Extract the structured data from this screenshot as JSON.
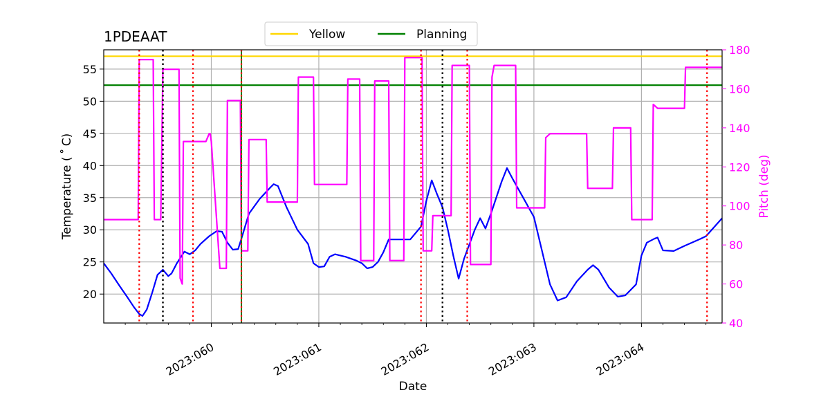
{
  "chart_data": {
    "type": "line",
    "title": "1PDEAAT",
    "xlabel": "Date",
    "ylabel_left": "Temperature ($^\\circ$C)",
    "ylabel_left_display": "Temperature ( ˚ C)",
    "ylabel_right": "Pitch (deg)",
    "x_unit": "day of 2023",
    "xlim": [
      2023.059,
      2023.06475
    ],
    "ylim_left": [
      15.5,
      58
    ],
    "ylim_right": [
      40,
      180
    ],
    "x_ticks": [
      {
        "value": 2023.06,
        "label": "2023:060"
      },
      {
        "value": 2023.061,
        "label": "2023:061"
      },
      {
        "value": 2023.062,
        "label": "2023:062"
      },
      {
        "value": 2023.063,
        "label": "2023:063"
      },
      {
        "value": 2023.064,
        "label": "2023:064"
      }
    ],
    "y_ticks_left": [
      20,
      25,
      30,
      35,
      40,
      45,
      50,
      55
    ],
    "y_ticks_right": [
      40,
      60,
      80,
      100,
      120,
      140,
      160,
      180
    ],
    "grid": true,
    "legend_placement": "top-center, above plot",
    "legend": [
      {
        "name": "Yellow",
        "color": "#ffd700"
      },
      {
        "name": "Planning",
        "color": "#008000"
      }
    ],
    "limit_lines": [
      {
        "name": "Yellow",
        "y": 57.0,
        "color": "#ffd700"
      },
      {
        "name": "Planning",
        "y": 52.5,
        "color": "#008000"
      }
    ],
    "vertical_markers": {
      "red_dotted": [
        2023.05933,
        2023.05983,
        2023.06028,
        2023.06195,
        2023.06238,
        2023.06461
      ],
      "black_dotted": [
        2023.05955,
        2023.06215
      ],
      "green_solid": [
        2023.06028
      ]
    },
    "series": [
      {
        "name": "Temperature",
        "axis": "left",
        "color": "#0000ff",
        "points": [
          [
            2023.059,
            24.8
          ],
          [
            2023.05907,
            23.2
          ],
          [
            2023.05915,
            21.2
          ],
          [
            2023.05922,
            19.5
          ],
          [
            2023.05928,
            18.0
          ],
          [
            2023.05933,
            16.9
          ],
          [
            2023.05936,
            16.6
          ],
          [
            2023.0594,
            17.6
          ],
          [
            2023.05945,
            20.2
          ],
          [
            2023.0595,
            23.0
          ],
          [
            2023.05955,
            23.8
          ],
          [
            2023.0596,
            22.8
          ],
          [
            2023.05963,
            23.2
          ],
          [
            2023.05968,
            24.8
          ],
          [
            2023.05975,
            26.6
          ],
          [
            2023.0598,
            26.2
          ],
          [
            2023.05985,
            26.8
          ],
          [
            2023.0599,
            27.8
          ],
          [
            2023.05998,
            29.0
          ],
          [
            2023.06005,
            29.8
          ],
          [
            2023.0601,
            29.7
          ],
          [
            2023.06015,
            28.0
          ],
          [
            2023.0602,
            26.9
          ],
          [
            2023.06025,
            27.0
          ],
          [
            2023.06028,
            28.6
          ],
          [
            2023.06035,
            32.5
          ],
          [
            2023.06045,
            34.8
          ],
          [
            2023.06055,
            36.6
          ],
          [
            2023.06058,
            37.1
          ],
          [
            2023.06062,
            36.8
          ],
          [
            2023.0607,
            33.5
          ],
          [
            2023.0608,
            30.0
          ],
          [
            2023.0609,
            27.8
          ],
          [
            2023.06095,
            24.8
          ],
          [
            2023.061,
            24.2
          ],
          [
            2023.06105,
            24.3
          ],
          [
            2023.0611,
            25.8
          ],
          [
            2023.06115,
            26.2
          ],
          [
            2023.06125,
            25.8
          ],
          [
            2023.06135,
            25.2
          ],
          [
            2023.0614,
            24.8
          ],
          [
            2023.06145,
            24.0
          ],
          [
            2023.0615,
            24.2
          ],
          [
            2023.06155,
            25.0
          ],
          [
            2023.0616,
            26.5
          ],
          [
            2023.06165,
            28.5
          ],
          [
            2023.06175,
            28.5
          ],
          [
            2023.06185,
            28.5
          ],
          [
            2023.0619,
            29.5
          ],
          [
            2023.06195,
            30.5
          ],
          [
            2023.062,
            34.5
          ],
          [
            2023.06205,
            37.7
          ],
          [
            2023.0621,
            35.5
          ],
          [
            2023.06215,
            33.5
          ],
          [
            2023.0622,
            30.0
          ],
          [
            2023.06225,
            26.0
          ],
          [
            2023.0623,
            22.4
          ],
          [
            2023.06235,
            25.5
          ],
          [
            2023.06245,
            30.0
          ],
          [
            2023.0625,
            31.8
          ],
          [
            2023.06255,
            30.2
          ],
          [
            2023.0626,
            32.5
          ],
          [
            2023.0627,
            37.5
          ],
          [
            2023.06275,
            39.6
          ],
          [
            2023.0628,
            38.0
          ],
          [
            2023.0629,
            35.0
          ],
          [
            2023.063,
            32.0
          ],
          [
            2023.06305,
            28.5
          ],
          [
            2023.06315,
            21.5
          ],
          [
            2023.06322,
            19.0
          ],
          [
            2023.0633,
            19.5
          ],
          [
            2023.0634,
            22.0
          ],
          [
            2023.0635,
            23.8
          ],
          [
            2023.06355,
            24.5
          ],
          [
            2023.0636,
            23.8
          ],
          [
            2023.0637,
            21.0
          ],
          [
            2023.06378,
            19.6
          ],
          [
            2023.06385,
            19.8
          ],
          [
            2023.06395,
            21.5
          ],
          [
            2023.064,
            26.0
          ],
          [
            2023.06405,
            28.0
          ],
          [
            2023.06412,
            28.6
          ],
          [
            2023.06415,
            28.8
          ],
          [
            2023.0642,
            26.8
          ],
          [
            2023.0643,
            26.7
          ],
          [
            2023.0644,
            27.5
          ],
          [
            2023.06455,
            28.6
          ],
          [
            2023.0646,
            29.0
          ],
          [
            2023.06475,
            31.8
          ]
        ]
      },
      {
        "name": "Pitch",
        "axis": "right",
        "color": "#ff00ff",
        "points": [
          [
            2023.059,
            93
          ],
          [
            2023.05932,
            93
          ],
          [
            2023.05933,
            175
          ],
          [
            2023.05946,
            175
          ],
          [
            2023.05947,
            93
          ],
          [
            2023.05953,
            93
          ],
          [
            2023.05955,
            170
          ],
          [
            2023.0597,
            170
          ],
          [
            2023.05971,
            63
          ],
          [
            2023.05973,
            60
          ],
          [
            2023.05974,
            133
          ],
          [
            2023.05995,
            133
          ],
          [
            2023.05998,
            137
          ],
          [
            2023.05999,
            137
          ],
          [
            2023.06,
            133
          ],
          [
            2023.06008,
            68
          ],
          [
            2023.06014,
            68
          ],
          [
            2023.06015,
            154
          ],
          [
            2023.06027,
            154
          ],
          [
            2023.06028,
            77
          ],
          [
            2023.06034,
            77
          ],
          [
            2023.06035,
            134
          ],
          [
            2023.06051,
            134
          ],
          [
            2023.06052,
            102
          ],
          [
            2023.0608,
            102
          ],
          [
            2023.06081,
            166
          ],
          [
            2023.06095,
            166
          ],
          [
            2023.06096,
            111
          ],
          [
            2023.06126,
            111
          ],
          [
            2023.06127,
            165
          ],
          [
            2023.06138,
            165
          ],
          [
            2023.06139,
            72
          ],
          [
            2023.06151,
            72
          ],
          [
            2023.06152,
            164
          ],
          [
            2023.06165,
            164
          ],
          [
            2023.06166,
            72
          ],
          [
            2023.06179,
            72
          ],
          [
            2023.0618,
            176
          ],
          [
            2023.06185,
            176
          ],
          [
            2023.06196,
            176
          ],
          [
            2023.06197,
            77
          ],
          [
            2023.06205,
            77
          ],
          [
            2023.06206,
            95
          ],
          [
            2023.06223,
            95
          ],
          [
            2023.06224,
            172
          ],
          [
            2023.06238,
            172
          ],
          [
            2023.0624,
            172
          ],
          [
            2023.06241,
            70
          ],
          [
            2023.0626,
            70
          ],
          [
            2023.06261,
            166
          ],
          [
            2023.06263,
            172
          ],
          [
            2023.06283,
            172
          ],
          [
            2023.06284,
            99
          ],
          [
            2023.0631,
            99
          ],
          [
            2023.06311,
            135
          ],
          [
            2023.06315,
            137
          ],
          [
            2023.06349,
            137
          ],
          [
            2023.0635,
            109
          ],
          [
            2023.06373,
            109
          ],
          [
            2023.06374,
            140
          ],
          [
            2023.0639,
            140
          ],
          [
            2023.06391,
            93
          ],
          [
            2023.0641,
            93
          ],
          [
            2023.06411,
            152
          ],
          [
            2023.06415,
            150
          ],
          [
            2023.0644,
            150
          ],
          [
            2023.06441,
            171
          ],
          [
            2023.06475,
            171
          ]
        ]
      }
    ]
  }
}
